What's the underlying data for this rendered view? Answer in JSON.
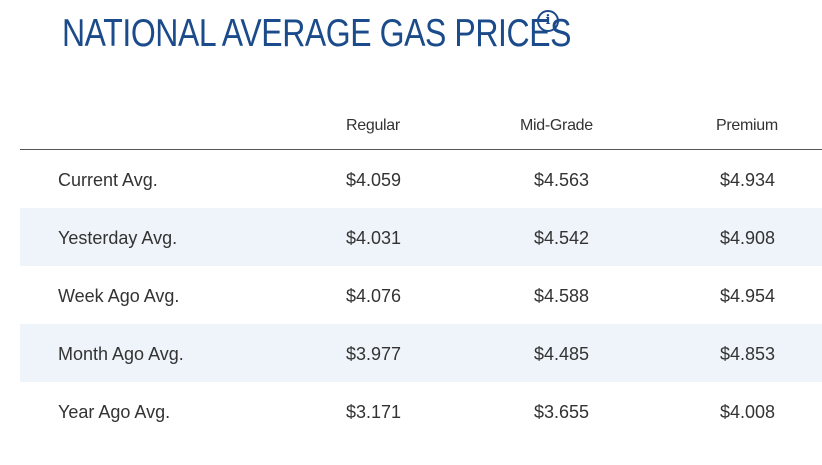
{
  "title": "NATIONAL AVERAGE GAS PRICES",
  "info_icon": "info-icon",
  "colors": {
    "title": "#1b4b8a",
    "shaded_row": "#eef4f9",
    "text": "#333333"
  },
  "table": {
    "headers": [
      "Regular",
      "Mid-Grade",
      "Premium"
    ],
    "rows": [
      {
        "label": "Current Avg.",
        "regular": "$4.059",
        "mid": "$4.563",
        "premium": "$4.934"
      },
      {
        "label": "Yesterday Avg.",
        "regular": "$4.031",
        "mid": "$4.542",
        "premium": "$4.908"
      },
      {
        "label": "Week Ago Avg.",
        "regular": "$4.076",
        "mid": "$4.588",
        "premium": "$4.954"
      },
      {
        "label": "Month Ago Avg.",
        "regular": "$3.977",
        "mid": "$4.485",
        "premium": "$4.853"
      },
      {
        "label": "Year Ago Avg.",
        "regular": "$3.171",
        "mid": "$3.655",
        "premium": "$4.008"
      }
    ]
  }
}
